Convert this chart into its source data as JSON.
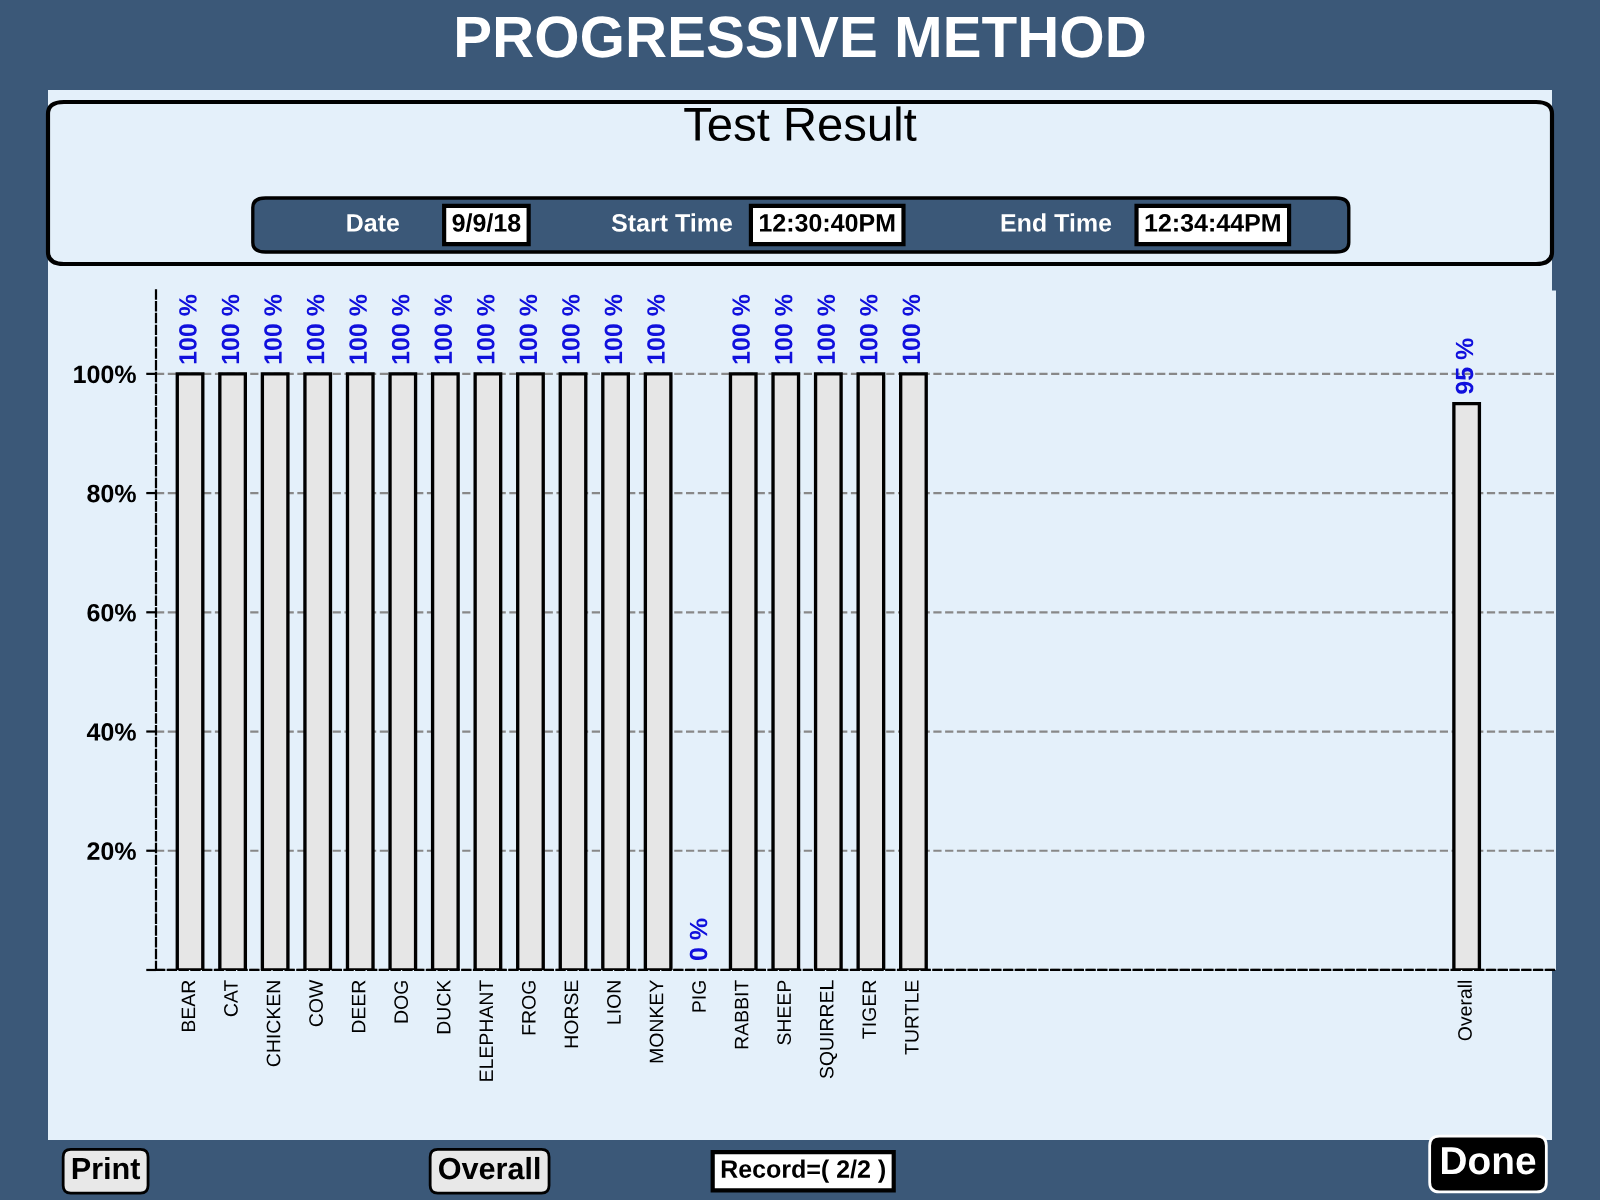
{
  "chart_data": {
    "type": "bar",
    "title": "PROGRESSIVE METHOD",
    "subtitle": "Test Result",
    "annotations": [
      "Date",
      "9/9/18",
      "Start Time",
      "12:30:40PM",
      "End Time",
      "12:34:44PM",
      "Print",
      "Overall",
      "Record=( 2/2 )",
      "Done"
    ],
    "categories": [
      "BEAR",
      "CAT",
      "CHICKEN",
      "COW",
      "DEER",
      "DOG",
      "DUCK",
      "ELEPHANT",
      "FROG",
      "HORSE",
      "LION",
      "MONKEY",
      "PIG",
      "RABBIT",
      "SHEEP",
      "SQUIRREL",
      "TIGER",
      "TURTLE",
      null,
      null,
      null,
      null,
      null,
      null,
      null,
      null,
      null,
      null,
      null,
      null,
      "Overall"
    ],
    "values": [
      100,
      100,
      100,
      100,
      100,
      100,
      100,
      100,
      100,
      100,
      100,
      100,
      0,
      100,
      100,
      100,
      100,
      100,
      null,
      null,
      null,
      null,
      null,
      null,
      null,
      null,
      null,
      null,
      null,
      null,
      95
    ],
    "value_labels": [
      "100 %",
      "100 %",
      "100 %",
      "100 %",
      "100 %",
      "100 %",
      "100 %",
      "100 %",
      "100 %",
      "100 %",
      "100 %",
      "100 %",
      "0 %",
      "100 %",
      "100 %",
      "100 %",
      "100 %",
      "100 %",
      null,
      null,
      null,
      null,
      null,
      null,
      null,
      null,
      null,
      null,
      null,
      null,
      "95 %"
    ],
    "color": "#e6e6e6",
    "ylim": [
      0,
      114
    ],
    "yticks": [
      {
        "value": 0,
        "label": null
      },
      {
        "value": 20,
        "label": "20%"
      },
      {
        "value": 40,
        "label": "40%"
      },
      {
        "value": 60,
        "label": "60%"
      },
      {
        "value": 80,
        "label": "80%"
      },
      {
        "value": 100,
        "label": "100%"
      }
    ],
    "grid": "y"
  }
}
